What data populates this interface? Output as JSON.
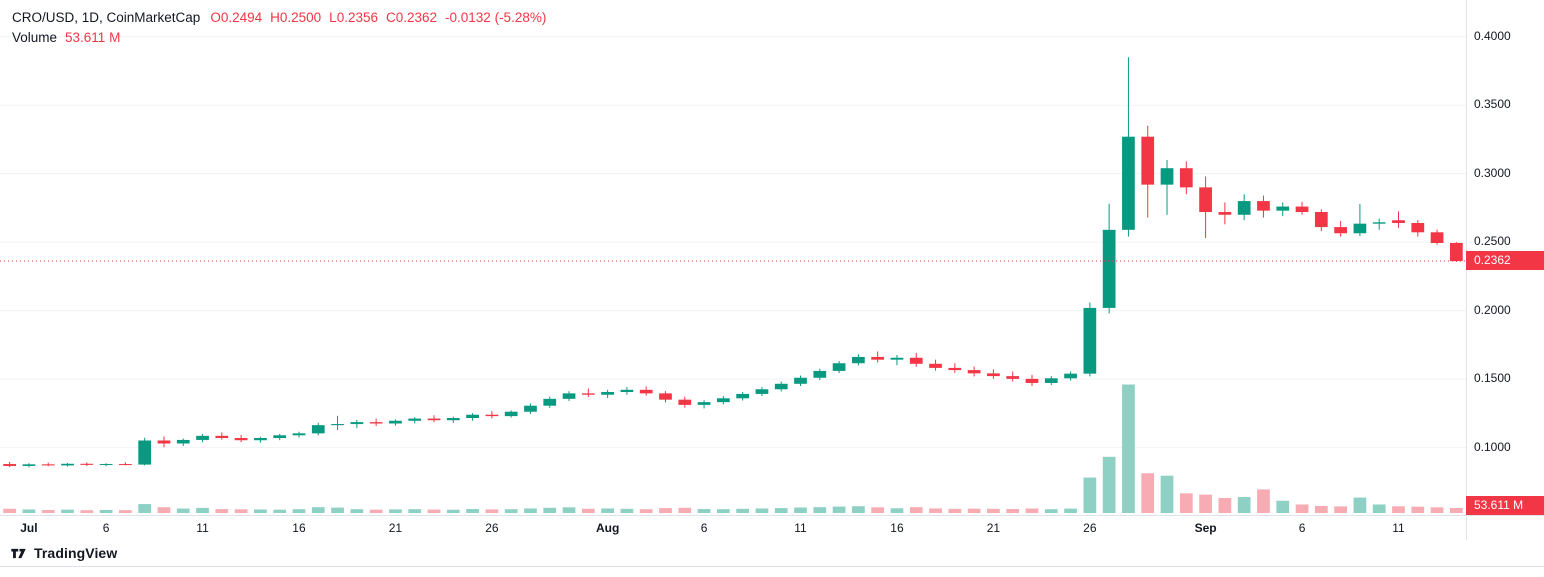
{
  "legend": {
    "symbol": "CRO/USD, 1D, CoinMarketCap",
    "o_label": "O",
    "h_label": "H",
    "l_label": "L",
    "c_label": "C",
    "open": "0.2494",
    "high": "0.2500",
    "low": "0.2356",
    "close": "0.2362",
    "change": "-0.0132 (-5.28%)",
    "volume_label": "Volume",
    "volume_value": "53.611 M"
  },
  "badges": {
    "price": "0.2362",
    "volume": "53.611 M"
  },
  "footer": {
    "brand": "TradingView"
  },
  "colors": {
    "up": "#089981",
    "down": "#f23645",
    "up_volume": "#8fd0c5",
    "down_volume": "#f7abb2",
    "grid": "#f2f3f7",
    "border": "#e0e3eb",
    "axis_text": "#131722"
  },
  "chart_data": {
    "type": "candlestick",
    "title": "CRO/USD, 1D, CoinMarketCap",
    "legend_position": "top-left",
    "grid": "faint-horizontal",
    "price_domain": [
      0.0508,
      0.4268
    ],
    "volume_domain_max": 1400,
    "price_ticks": [
      {
        "price": 0.4,
        "label": "0.4000"
      },
      {
        "price": 0.35,
        "label": "0.3500"
      },
      {
        "price": 0.3,
        "label": "0.3000"
      },
      {
        "price": 0.25,
        "label": "0.2500"
      },
      {
        "price": 0.2,
        "label": "0.2000"
      },
      {
        "price": 0.15,
        "label": "0.1500"
      },
      {
        "price": 0.1,
        "label": "0.1000"
      }
    ],
    "time_ticks": [
      {
        "i": 1,
        "label": "Jul",
        "month": true
      },
      {
        "i": 5,
        "label": "6"
      },
      {
        "i": 10,
        "label": "11"
      },
      {
        "i": 15,
        "label": "16"
      },
      {
        "i": 20,
        "label": "21"
      },
      {
        "i": 25,
        "label": "26"
      },
      {
        "i": 31,
        "label": "Aug",
        "month": true
      },
      {
        "i": 36,
        "label": "6"
      },
      {
        "i": 41,
        "label": "11"
      },
      {
        "i": 46,
        "label": "16"
      },
      {
        "i": 51,
        "label": "21"
      },
      {
        "i": 56,
        "label": "26"
      },
      {
        "i": 62,
        "label": "Sep",
        "month": true
      },
      {
        "i": 67,
        "label": "6"
      },
      {
        "i": 72,
        "label": "11"
      }
    ],
    "current": {
      "open": 0.2494,
      "high": 0.25,
      "low": 0.2356,
      "close": 0.2362,
      "change": -0.0132,
      "change_pct": -5.28,
      "volume_m": 53.611
    },
    "candles": [
      [
        0.088,
        0.0895,
        0.0858,
        0.0866
      ],
      [
        0.0866,
        0.0886,
        0.0856,
        0.0878
      ],
      [
        0.0878,
        0.089,
        0.0864,
        0.087
      ],
      [
        0.087,
        0.0888,
        0.0862,
        0.0882
      ],
      [
        0.0882,
        0.0892,
        0.0866,
        0.0874
      ],
      [
        0.0874,
        0.0886,
        0.0864,
        0.088
      ],
      [
        0.088,
        0.0893,
        0.087,
        0.0876
      ],
      [
        0.0876,
        0.1072,
        0.087,
        0.1052
      ],
      [
        0.1052,
        0.1082,
        0.1002,
        0.103
      ],
      [
        0.103,
        0.1066,
        0.1012,
        0.1056
      ],
      [
        0.1056,
        0.11,
        0.104,
        0.1086
      ],
      [
        0.1086,
        0.1112,
        0.1058,
        0.107
      ],
      [
        0.107,
        0.1092,
        0.104,
        0.1054
      ],
      [
        0.1054,
        0.108,
        0.1036,
        0.107
      ],
      [
        0.107,
        0.11,
        0.1054,
        0.109
      ],
      [
        0.109,
        0.1116,
        0.1074,
        0.1104
      ],
      [
        0.1104,
        0.1182,
        0.109,
        0.1164
      ],
      [
        0.1164,
        0.1232,
        0.1128,
        0.1172
      ],
      [
        0.1172,
        0.1202,
        0.1142,
        0.1186
      ],
      [
        0.1186,
        0.1212,
        0.1158,
        0.1176
      ],
      [
        0.1176,
        0.1206,
        0.116,
        0.1196
      ],
      [
        0.1196,
        0.1222,
        0.1176,
        0.1212
      ],
      [
        0.1212,
        0.1236,
        0.1186,
        0.12
      ],
      [
        0.12,
        0.1226,
        0.118,
        0.1216
      ],
      [
        0.1216,
        0.1252,
        0.1196,
        0.124
      ],
      [
        0.124,
        0.1266,
        0.1214,
        0.123
      ],
      [
        0.123,
        0.1272,
        0.122,
        0.1262
      ],
      [
        0.1262,
        0.1322,
        0.1246,
        0.1306
      ],
      [
        0.1306,
        0.1372,
        0.129,
        0.1356
      ],
      [
        0.1356,
        0.1412,
        0.134,
        0.1396
      ],
      [
        0.1396,
        0.1432,
        0.137,
        0.1386
      ],
      [
        0.1386,
        0.1422,
        0.1362,
        0.1406
      ],
      [
        0.1406,
        0.1442,
        0.1386,
        0.1422
      ],
      [
        0.1422,
        0.1446,
        0.138,
        0.1396
      ],
      [
        0.1396,
        0.1412,
        0.133,
        0.135
      ],
      [
        0.135,
        0.1372,
        0.1292,
        0.1312
      ],
      [
        0.1312,
        0.1346,
        0.1286,
        0.1332
      ],
      [
        0.1332,
        0.1376,
        0.1316,
        0.136
      ],
      [
        0.136,
        0.1406,
        0.1344,
        0.1392
      ],
      [
        0.1392,
        0.1442,
        0.1376,
        0.1426
      ],
      [
        0.1426,
        0.1482,
        0.141,
        0.1466
      ],
      [
        0.1466,
        0.1526,
        0.145,
        0.151
      ],
      [
        0.151,
        0.1576,
        0.1494,
        0.156
      ],
      [
        0.156,
        0.1632,
        0.1544,
        0.1616
      ],
      [
        0.1616,
        0.1682,
        0.16,
        0.1662
      ],
      [
        0.1662,
        0.1702,
        0.1622,
        0.1642
      ],
      [
        0.1642,
        0.1676,
        0.1602,
        0.1656
      ],
      [
        0.1656,
        0.1692,
        0.159,
        0.1612
      ],
      [
        0.1612,
        0.1642,
        0.1562,
        0.1582
      ],
      [
        0.1582,
        0.1616,
        0.1546,
        0.1566
      ],
      [
        0.1566,
        0.1592,
        0.152,
        0.1542
      ],
      [
        0.1542,
        0.1572,
        0.1502,
        0.1522
      ],
      [
        0.1522,
        0.1556,
        0.1482,
        0.1502
      ],
      [
        0.1502,
        0.1532,
        0.145,
        0.1472
      ],
      [
        0.1472,
        0.1522,
        0.1456,
        0.1506
      ],
      [
        0.1506,
        0.1556,
        0.149,
        0.154
      ],
      [
        0.154,
        0.206,
        0.152,
        0.202
      ],
      [
        0.202,
        0.278,
        0.198,
        0.259
      ],
      [
        0.259,
        0.385,
        0.254,
        0.327
      ],
      [
        0.327,
        0.335,
        0.268,
        0.292
      ],
      [
        0.292,
        0.31,
        0.27,
        0.304
      ],
      [
        0.304,
        0.309,
        0.285,
        0.29
      ],
      [
        0.29,
        0.298,
        0.253,
        0.272
      ],
      [
        0.272,
        0.279,
        0.263,
        0.27
      ],
      [
        0.27,
        0.285,
        0.266,
        0.28
      ],
      [
        0.28,
        0.284,
        0.268,
        0.273
      ],
      [
        0.273,
        0.279,
        0.269,
        0.276
      ],
      [
        0.276,
        0.2795,
        0.27,
        0.272
      ],
      [
        0.272,
        0.274,
        0.258,
        0.261
      ],
      [
        0.261,
        0.2655,
        0.254,
        0.2565
      ],
      [
        0.2565,
        0.278,
        0.2545,
        0.2635
      ],
      [
        0.2635,
        0.2672,
        0.259,
        0.2645
      ],
      [
        0.266,
        0.2725,
        0.2605,
        0.264
      ],
      [
        0.264,
        0.2662,
        0.254,
        0.2572
      ],
      [
        0.2572,
        0.2592,
        0.2482,
        0.2494
      ],
      [
        0.2494,
        0.25,
        0.2356,
        0.2362
      ]
    ],
    "volumes_m": [
      46,
      38,
      32,
      36,
      30,
      33,
      31,
      96,
      62,
      48,
      55,
      42,
      40,
      38,
      36,
      41,
      63,
      58,
      41,
      36,
      39,
      41,
      37,
      35,
      43,
      39,
      41,
      49,
      56,
      61,
      46,
      49,
      45,
      41,
      53,
      56,
      43,
      41,
      45,
      49,
      53,
      59,
      63,
      69,
      73,
      61,
      51,
      63,
      49,
      45,
      47,
      45,
      43,
      49,
      41,
      47,
      382,
      605,
      1384,
      428,
      402,
      212,
      198,
      162,
      172,
      254,
      132,
      92,
      76,
      71,
      166,
      92,
      72,
      68,
      61,
      53.611
    ]
  }
}
